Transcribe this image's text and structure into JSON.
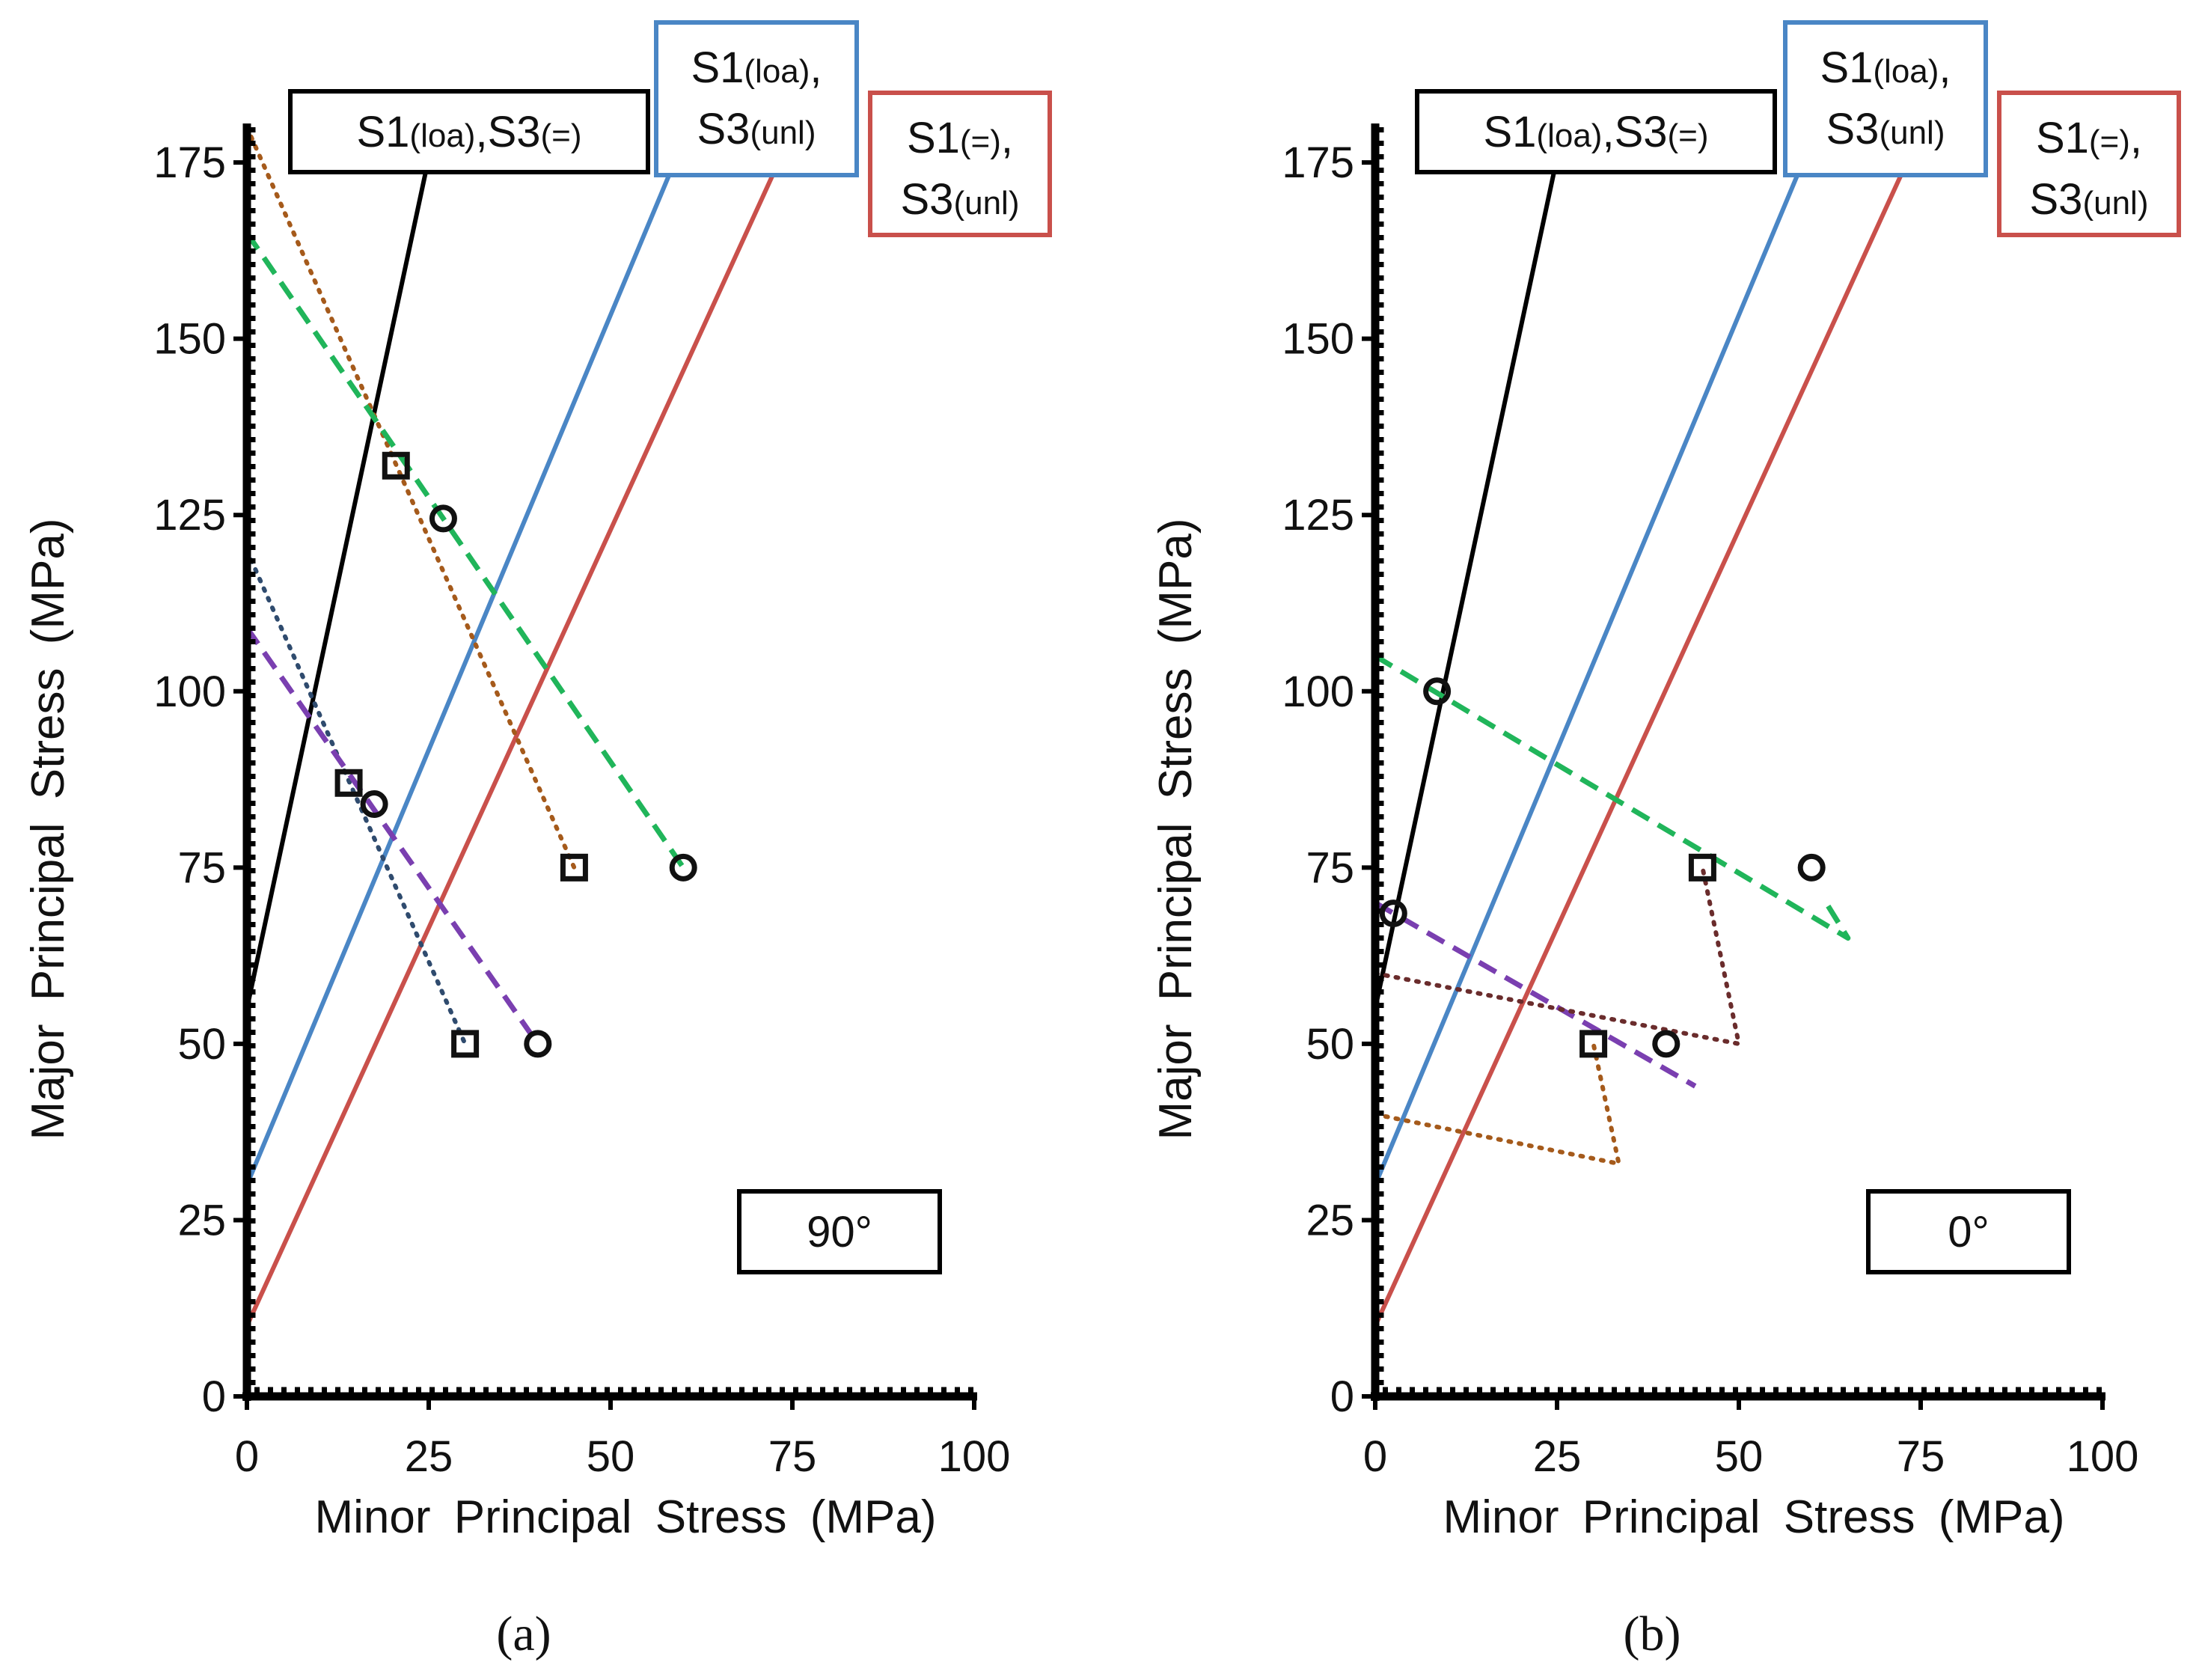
{
  "chart_data": [
    {
      "type": "line",
      "panel_label": "(a)",
      "orientation_label": "90°",
      "xlabel": "Minor Principal Stress (MPa)",
      "ylabel": "Major Principal Stress (MPa)",
      "xlim": [
        0,
        100
      ],
      "ylim": [
        0,
        180
      ],
      "xticks": [
        0,
        25,
        50,
        75,
        100
      ],
      "yticks": [
        0,
        25,
        50,
        75,
        100,
        125,
        150,
        175
      ],
      "criteria": [
        {
          "label_main": "S1",
          "label_sub1": "(loa)",
          "label_sep": ",S3",
          "label_sub2": "(=)",
          "color": "#000000",
          "x": [
            0,
            25.9
          ],
          "y": [
            55,
            180
          ]
        },
        {
          "label_main": "S1",
          "label_sub1": "(loa)",
          "label_sep": ",",
          "label_line2": "S3",
          "label_sub2": "(unl)",
          "color": "#4a86c5",
          "x": [
            0,
            60.8
          ],
          "y": [
            30,
            180
          ]
        },
        {
          "label_main": "S1",
          "label_sub1": "(=)",
          "label_sep": ",",
          "label_line2": "S3",
          "label_sub2": "(unl)",
          "color": "#c9504b",
          "x": [
            0,
            75.3
          ],
          "y": [
            10,
            180
          ]
        }
      ],
      "series": [
        {
          "style": "dotted",
          "color": "#a55a1b",
          "x": [
            0,
            45
          ],
          "y": [
            180,
            75
          ]
        },
        {
          "style": "dashed",
          "color": "#20b55a",
          "x": [
            0,
            60
          ],
          "y": [
            165,
            75
          ]
        },
        {
          "style": "dotted",
          "color": "#2f4b6e",
          "x": [
            0,
            30
          ],
          "y": [
            120,
            50
          ]
        },
        {
          "style": "dashed",
          "color": "#7a3fb0",
          "x": [
            0,
            40
          ],
          "y": [
            109,
            50
          ]
        }
      ],
      "points": [
        {
          "marker": "square",
          "x": 20.5,
          "y": 132
        },
        {
          "marker": "circle",
          "x": 27,
          "y": 124.5
        },
        {
          "marker": "square",
          "x": 45,
          "y": 75
        },
        {
          "marker": "circle",
          "x": 60,
          "y": 75
        },
        {
          "marker": "square",
          "x": 14,
          "y": 87
        },
        {
          "marker": "circle",
          "x": 17.5,
          "y": 84
        },
        {
          "marker": "square",
          "x": 30,
          "y": 50
        },
        {
          "marker": "circle",
          "x": 40,
          "y": 50
        }
      ]
    },
    {
      "type": "line",
      "panel_label": "(b)",
      "orientation_label": "0°",
      "xlabel": "Minor Principal Stress (MPa)",
      "ylabel": "Major Principal Stress (MPa)",
      "xlim": [
        0,
        100
      ],
      "ylim": [
        0,
        180
      ],
      "xticks": [
        0,
        25,
        50,
        75,
        100
      ],
      "yticks": [
        0,
        25,
        50,
        75,
        100,
        125,
        150,
        175
      ],
      "criteria": [
        {
          "label_main": "S1",
          "label_sub1": "(loa)",
          "label_sep": ",S3",
          "label_sub2": "(=)",
          "color": "#000000",
          "x": [
            0,
            25.9
          ],
          "y": [
            55,
            180
          ]
        },
        {
          "label_main": "S1",
          "label_sub1": "(loa)",
          "label_sep": ",",
          "label_line2": "S3",
          "label_sub2": "(unl)",
          "color": "#4a86c5",
          "x": [
            0,
            60.8
          ],
          "y": [
            30,
            180
          ]
        },
        {
          "label_main": "S1",
          "label_sub1": "(=)",
          "label_sep": ",",
          "label_line2": "S3",
          "label_sub2": "(unl)",
          "color": "#c9504b",
          "x": [
            0,
            75.3
          ],
          "y": [
            10,
            180
          ]
        }
      ],
      "series": [
        {
          "style": "dashed",
          "color": "#20b55a",
          "x": [
            0,
            65,
            62
          ],
          "y": [
            105,
            65,
            70
          ]
        },
        {
          "style": "dashed",
          "color": "#7a3fb0",
          "x": [
            0,
            44
          ],
          "y": [
            70,
            44
          ]
        },
        {
          "style": "dotted",
          "color": "#6a2c2c",
          "x": [
            0,
            50,
            45
          ],
          "y": [
            60,
            50,
            75
          ]
        },
        {
          "style": "dotted",
          "color": "#a55a1b",
          "x": [
            0,
            33.5,
            30
          ],
          "y": [
            40,
            33,
            50
          ]
        }
      ],
      "points": [
        {
          "marker": "circle",
          "x": 8.5,
          "y": 100
        },
        {
          "marker": "circle",
          "x": 2.5,
          "y": 68.5
        },
        {
          "marker": "square",
          "x": 45,
          "y": 75
        },
        {
          "marker": "circle",
          "x": 60,
          "y": 75
        },
        {
          "marker": "square",
          "x": 30,
          "y": 50
        },
        {
          "marker": "circle",
          "x": 40,
          "y": 50
        }
      ]
    }
  ]
}
